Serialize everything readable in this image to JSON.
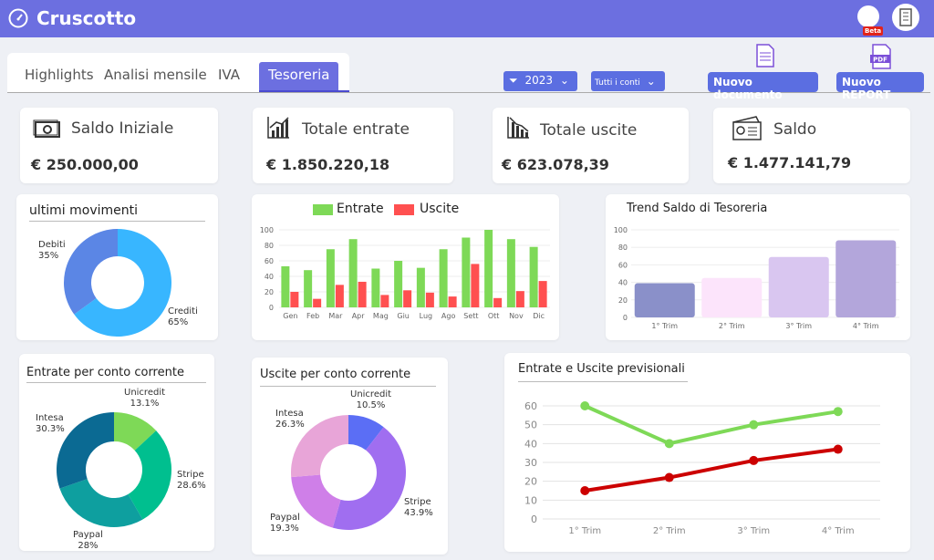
{
  "app": {
    "title": "Cruscotto",
    "beta_label": "Beta"
  },
  "tabs": [
    {
      "label": "Highlights"
    },
    {
      "label": "Analisi mensile"
    },
    {
      "label": "IVA"
    },
    {
      "label": "Tesoreria"
    }
  ],
  "active_tab": "Tesoreria",
  "filters": {
    "year": "2023",
    "accounts": "Tutti i conti"
  },
  "actions": {
    "new_document": "Nuovo documento",
    "new_report": "Nuovo REPORT",
    "pdf_label": "PDF"
  },
  "kpis": [
    {
      "label": "Saldo Iniziale",
      "value": "€ 250.000,00",
      "icon": "cash-icon"
    },
    {
      "label": "Totale entrate",
      "value": "€ 1.850.220,18",
      "icon": "chart-up-icon"
    },
    {
      "label": "Totale uscite",
      "value": "€ 623.078,39",
      "icon": "chart-down-icon"
    },
    {
      "label": "Saldo",
      "value": "€ 1.477.141,79",
      "icon": "bank-card-icon"
    }
  ],
  "colors": {
    "accent": "#6c6fe0",
    "entrate": "#7ed957",
    "uscite": "#ff5050"
  },
  "chart_data": [
    {
      "type": "pie",
      "title": "ultimi movimenti",
      "series": [
        {
          "name": "Debiti",
          "value": 35,
          "label": "35%",
          "color": "#5b86e5"
        },
        {
          "name": "Crediti",
          "value": 65,
          "label": "65%",
          "color": "#38b6ff"
        }
      ]
    },
    {
      "type": "bar",
      "categories": [
        "Gen",
        "Feb",
        "Mar",
        "Apr",
        "Mag",
        "Giu",
        "Lug",
        "Ago",
        "Sett",
        "Ott",
        "Nov",
        "Dic"
      ],
      "series": [
        {
          "name": "Entrate",
          "color": "#7ed957",
          "values": [
            53,
            48,
            75,
            88,
            50,
            60,
            51,
            75,
            90,
            100,
            88,
            78
          ]
        },
        {
          "name": "Uscite",
          "color": "#ff5050",
          "values": [
            20,
            11,
            29,
            33,
            16,
            22,
            19,
            14,
            56,
            12,
            21,
            34
          ]
        }
      ],
      "yticks": [
        0,
        20,
        40,
        60,
        80,
        100
      ],
      "ylim": [
        0,
        100
      ]
    },
    {
      "type": "bar",
      "title": "Trend Saldo di Tesoreria",
      "categories": [
        "1° Trim",
        "2° Trim",
        "3° Trim",
        "4° Trim"
      ],
      "values": [
        39,
        45,
        69,
        88
      ],
      "colors": [
        "#8a90c9",
        "#fce4fb",
        "#d9c6f0",
        "#b3a6db"
      ],
      "yticks": [
        0,
        20,
        40,
        60,
        80,
        100
      ],
      "ylim": [
        0,
        100
      ]
    },
    {
      "type": "pie",
      "title": "Entrate per conto corrente",
      "series": [
        {
          "name": "Unicredit",
          "value": 13.1,
          "label": "13.1%",
          "color": "#7ed957"
        },
        {
          "name": "Stripe",
          "value": 28.6,
          "label": "28.6%",
          "color": "#00bf8f"
        },
        {
          "name": "Paypal",
          "value": 28,
          "label": "28%",
          "color": "#0e9f9f"
        },
        {
          "name": "Intesa",
          "value": 30.3,
          "label": "30.3%",
          "color": "#0b6a93"
        }
      ]
    },
    {
      "type": "pie",
      "title": "Uscite per conto corrente",
      "series": [
        {
          "name": "Unicredit",
          "value": 10.5,
          "label": "10.5%",
          "color": "#5b6ef5"
        },
        {
          "name": "Stripe",
          "value": 43.9,
          "label": "43.9%",
          "color": "#a06ef0"
        },
        {
          "name": "Paypal",
          "value": 19.3,
          "label": "19.3%",
          "color": "#cf7fe8"
        },
        {
          "name": "Intesa",
          "value": 26.3,
          "label": "26.3%",
          "color": "#e8a5d8"
        }
      ]
    },
    {
      "type": "line",
      "title": "Entrate e Uscite previsionali",
      "categories": [
        "1° Trim",
        "2° Trim",
        "3° Trim",
        "4° Trim"
      ],
      "series": [
        {
          "color": "#7ed957",
          "values": [
            60,
            40,
            50,
            57
          ]
        },
        {
          "color": "#cc0000",
          "values": [
            15,
            22,
            31,
            37
          ]
        }
      ],
      "yticks": [
        0,
        10,
        20,
        30,
        40,
        50,
        60
      ],
      "ylim": [
        0,
        65
      ]
    }
  ]
}
